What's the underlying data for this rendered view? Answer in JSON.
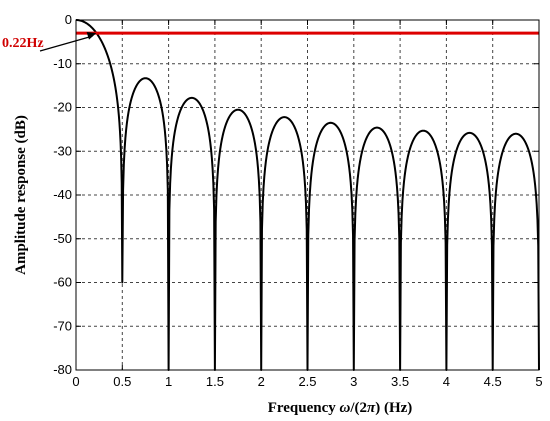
{
  "chart_data": {
    "type": "line",
    "xlabel": {
      "prefix": "Frequency ",
      "omega": "ω",
      "mid": "/(2",
      "pi": "π",
      "suffix": ") (Hz)"
    },
    "ylabel": "Amplitude response (dB)",
    "xlim": [
      0,
      5
    ],
    "ylim": [
      -80,
      0
    ],
    "xticks": [
      0,
      0.5,
      1,
      1.5,
      2,
      2.5,
      3,
      3.5,
      4,
      4.5,
      5
    ],
    "xtick_labels": [
      "0",
      "0.5",
      "1",
      "1.5",
      "2",
      "2.5",
      "3",
      "3.5",
      "4",
      "4.5",
      "5"
    ],
    "yticks": [
      0,
      -10,
      -20,
      -30,
      -40,
      -50,
      -60,
      -70,
      -80
    ],
    "ytick_labels": [
      "0",
      "-10",
      "-20",
      "-30",
      "-40",
      "-50",
      "-60",
      "-70",
      "-80"
    ],
    "grid": true,
    "grid_style": "dashed",
    "response_nulls": [
      0.5,
      1,
      1.5,
      2,
      2.5,
      3,
      3.5,
      4,
      4.5,
      5
    ],
    "sidelobe_peaks": [
      {
        "x": 0.72,
        "y": -13.3
      },
      {
        "x": 1.23,
        "y": -17.8
      },
      {
        "x": 1.74,
        "y": -20.5
      },
      {
        "x": 2.25,
        "y": -22.2
      },
      {
        "x": 2.75,
        "y": -23.5
      },
      {
        "x": 3.25,
        "y": -24.6
      },
      {
        "x": 3.75,
        "y": -25.3
      },
      {
        "x": 4.25,
        "y": -25.8
      },
      {
        "x": 4.75,
        "y": -26.0
      }
    ],
    "series": [
      {
        "color": "#000000"
      },
      {
        "constant_y": -3,
        "color": "#dd0000"
      }
    ],
    "annotation": {
      "text": "0.22Hz",
      "x": 0.22,
      "y": -3,
      "color": "#dd0000"
    }
  }
}
